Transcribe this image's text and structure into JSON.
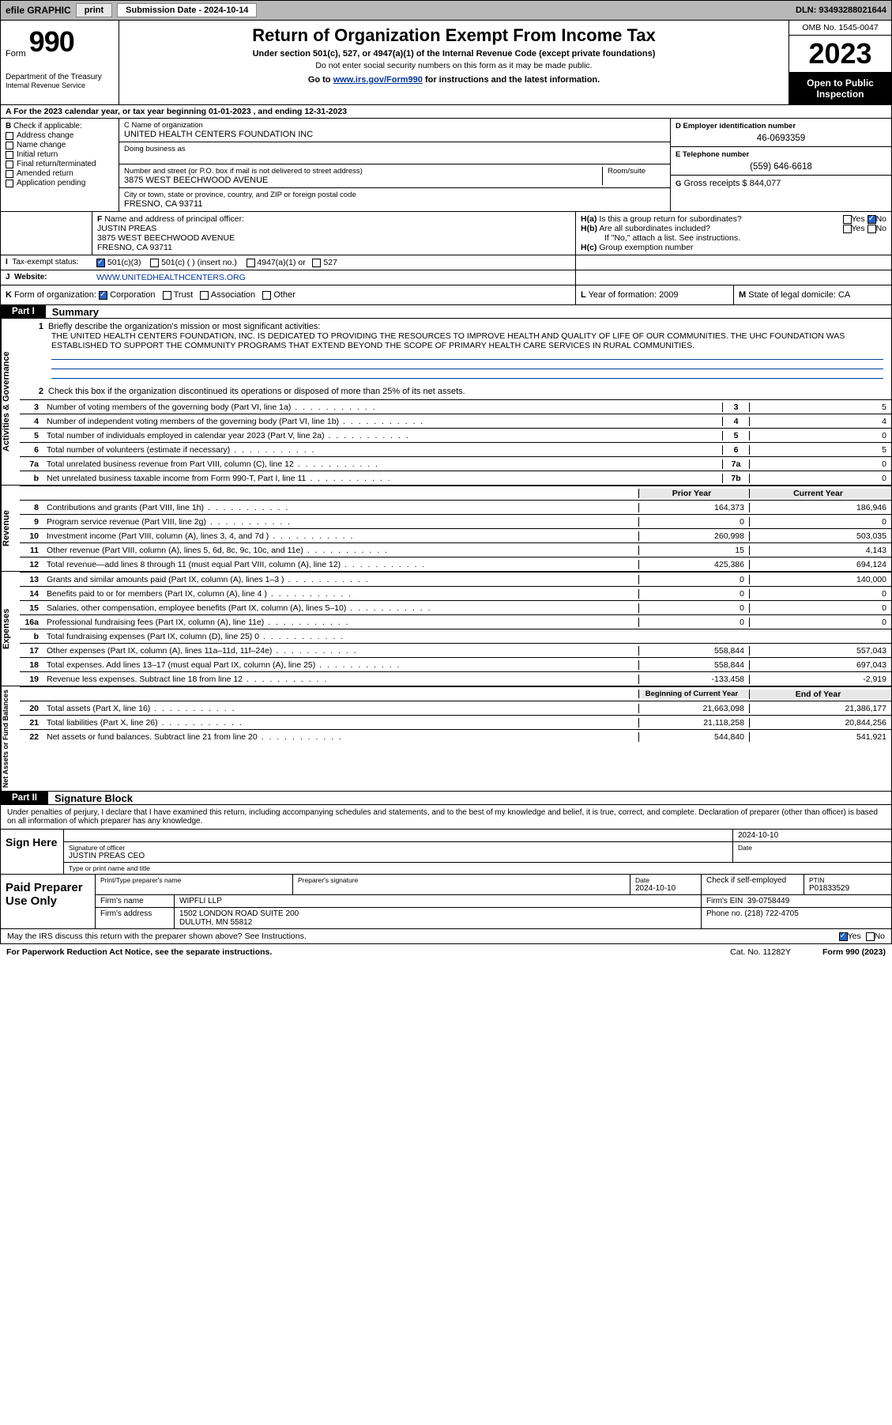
{
  "toolbar": {
    "efile_label": "efile GRAPHIC",
    "print_label": "print",
    "submission_label": "Submission Date - 2024-10-14",
    "dln_label": "DLN: 93493288021644"
  },
  "header": {
    "form_word": "Form",
    "form_number": "990",
    "dept": "Department of the Treasury",
    "irs": "Internal Revenue Service",
    "title": "Return of Organization Exempt From Income Tax",
    "subtitle": "Under section 501(c), 527, or 4947(a)(1) of the Internal Revenue Code (except private foundations)",
    "note1": "Do not enter social security numbers on this form as it may be made public.",
    "note2_prefix": "Go to ",
    "note2_link": "www.irs.gov/Form990",
    "note2_suffix": " for instructions and the latest information.",
    "omb": "OMB No. 1545-0047",
    "year": "2023",
    "open_public": "Open to Public Inspection"
  },
  "tax_year_line": "A For the 2023 calendar year, or tax year beginning 01-01-2023   , and ending 12-31-2023",
  "sectionB": {
    "lead_b": "B",
    "lead_text": " Check if applicable:",
    "addr_change": "Address change",
    "name_change": "Name change",
    "initial_return": "Initial return",
    "final_return": "Final return/terminated",
    "amended_return": "Amended return",
    "app_pending": "Application pending"
  },
  "sectionC": {
    "label_name": "C Name of organization",
    "org_name": "UNITED HEALTH CENTERS FOUNDATION INC",
    "dba_label": "Doing business as",
    "dba_value": "",
    "addr_label": "Number and street (or P.O. box if mail is not delivered to street address)",
    "room_label": "Room/suite",
    "street": "3875 WEST BEECHWOOD AVENUE",
    "city_label": "City or town, state or province, country, and ZIP or foreign postal code",
    "city": "FRESNO, CA  93711"
  },
  "sectionD": {
    "label": "D Employer identification number",
    "value": "46-0693359"
  },
  "sectionE": {
    "label": "E Telephone number",
    "value": "(559) 646-6618"
  },
  "sectionG": {
    "label": "G",
    "text": " Gross receipts $ 844,077"
  },
  "sectionF": {
    "label": "F",
    "text": " Name and address of principal officer:",
    "name": "JUSTIN PREAS",
    "addr1": "3875 WEST BEECHWOOD AVENUE",
    "addr2": "FRESNO, CA  93711"
  },
  "sectionH": {
    "a_label": "H(a)",
    "a_text": "  Is this a group return for subordinates?",
    "b_label": "H(b)",
    "b_text": "  Are all subordinates included?",
    "ifno": "If \"No,\" attach a list. See instructions.",
    "c_label": "H(c)",
    "c_text": "  Group exemption number",
    "yes": "Yes",
    "no": "No"
  },
  "sectionI": {
    "label": "I",
    "text": "Tax-exempt status:",
    "opt1": "501(c)(3)",
    "opt2": "501(c) (  ) (insert no.)",
    "opt3": "4947(a)(1) or",
    "opt4": "527"
  },
  "sectionJ": {
    "label": "J",
    "text": "Website:",
    "value": "WWW.UNITEDHEALTHCENTERS.ORG"
  },
  "sectionK": {
    "label": "K",
    "text": " Form of organization:",
    "corp": "Corporation",
    "trust": "Trust",
    "assoc": "Association",
    "other": "Other"
  },
  "sectionL": {
    "label": "L",
    "text": " Year of formation: 2009"
  },
  "sectionM": {
    "label": "M",
    "text": " State of legal domicile: CA"
  },
  "part1": {
    "part_label": "Part I",
    "summary": "Summary",
    "side_gov": "Activities & Governance",
    "side_rev": "Revenue",
    "side_exp": "Expenses",
    "side_net": "Net Assets or Fund Balances",
    "q1_label": "1",
    "q1_text": "Briefly describe the organization's mission or most significant activities:",
    "mission": "THE UNITED HEALTH CENTERS FOUNDATION, INC. IS DEDICATED TO PROVIDING THE RESOURCES TO IMPROVE HEALTH AND QUALITY OF LIFE OF OUR COMMUNITIES. THE UHC FOUNDATION WAS ESTABLISHED TO SUPPORT THE COMMUNITY PROGRAMS THAT EXTEND BEYOND THE SCOPE OF PRIMARY HEALTH CARE SERVICES IN RURAL COMMUNITIES.",
    "q2_label": "2",
    "q2_text": "Check this box      if the organization discontinued its operations or disposed of more than 25% of its net assets.",
    "rows_gov": [
      {
        "n": "3",
        "desc": "Number of voting members of the governing body (Part VI, line 1a)",
        "code": "3",
        "val": "5"
      },
      {
        "n": "4",
        "desc": "Number of independent voting members of the governing body (Part VI, line 1b)",
        "code": "4",
        "val": "4"
      },
      {
        "n": "5",
        "desc": "Total number of individuals employed in calendar year 2023 (Part V, line 2a)",
        "code": "5",
        "val": "0"
      },
      {
        "n": "6",
        "desc": "Total number of volunteers (estimate if necessary)",
        "code": "6",
        "val": "5"
      },
      {
        "n": "7a",
        "desc": "Total unrelated business revenue from Part VIII, column (C), line 12",
        "code": "7a",
        "val": "0"
      },
      {
        "n": "b",
        "desc": "Net unrelated business taxable income from Form 990-T, Part I, line 11",
        "code": "7b",
        "val": "0"
      }
    ],
    "header_prior": "Prior Year",
    "header_current": "Current Year",
    "rows_rev": [
      {
        "n": "8",
        "desc": "Contributions and grants (Part VIII, line 1h)",
        "prior": "164,373",
        "cur": "186,946"
      },
      {
        "n": "9",
        "desc": "Program service revenue (Part VIII, line 2g)",
        "prior": "0",
        "cur": "0"
      },
      {
        "n": "10",
        "desc": "Investment income (Part VIII, column (A), lines 3, 4, and 7d )",
        "prior": "260,998",
        "cur": "503,035"
      },
      {
        "n": "11",
        "desc": "Other revenue (Part VIII, column (A), lines 5, 6d, 8c, 9c, 10c, and 11e)",
        "prior": "15",
        "cur": "4,143"
      },
      {
        "n": "12",
        "desc": "Total revenue—add lines 8 through 11 (must equal Part VIII, column (A), line 12)",
        "prior": "425,386",
        "cur": "694,124"
      }
    ],
    "rows_exp": [
      {
        "n": "13",
        "desc": "Grants and similar amounts paid (Part IX, column (A), lines 1–3 )",
        "prior": "0",
        "cur": "140,000"
      },
      {
        "n": "14",
        "desc": "Benefits paid to or for members (Part IX, column (A), line 4 )",
        "prior": "0",
        "cur": "0"
      },
      {
        "n": "15",
        "desc": "Salaries, other compensation, employee benefits (Part IX, column (A), lines 5–10)",
        "prior": "0",
        "cur": "0"
      },
      {
        "n": "16a",
        "desc": "Professional fundraising fees (Part IX, column (A), line 11e)",
        "prior": "0",
        "cur": "0"
      },
      {
        "n": "b",
        "desc": "Total fundraising expenses (Part IX, column (D), line 25) 0",
        "prior": "grey",
        "cur": "grey"
      },
      {
        "n": "17",
        "desc": "Other expenses (Part IX, column (A), lines 11a–11d, 11f–24e)",
        "prior": "558,844",
        "cur": "557,043"
      },
      {
        "n": "18",
        "desc": "Total expenses. Add lines 13–17 (must equal Part IX, column (A), line 25)",
        "prior": "558,844",
        "cur": "697,043"
      },
      {
        "n": "19",
        "desc": "Revenue less expenses. Subtract line 18 from line 12",
        "prior": "-133,458",
        "cur": "-2,919"
      }
    ],
    "header_begin": "Beginning of Current Year",
    "header_end": "End of Year",
    "rows_net": [
      {
        "n": "20",
        "desc": "Total assets (Part X, line 16)",
        "prior": "21,663,098",
        "cur": "21,386,177"
      },
      {
        "n": "21",
        "desc": "Total liabilities (Part X, line 26)",
        "prior": "21,118,258",
        "cur": "20,844,256"
      },
      {
        "n": "22",
        "desc": "Net assets or fund balances. Subtract line 21 from line 20",
        "prior": "544,840",
        "cur": "541,921"
      }
    ]
  },
  "part2": {
    "part_label": "Part II",
    "title": "Signature Block",
    "perjury": "Under penalties of perjury, I declare that I have examined this return, including accompanying schedules and statements, and to the best of my knowledge and belief, it is true, correct, and complete. Declaration of preparer (other than officer) is based on all information of which preparer has any knowledge.",
    "sign_here": "Sign Here",
    "sig_of_officer": "Signature of officer",
    "officer_name": "JUSTIN PREAS CEO",
    "type_name": "Type or print name and title",
    "date_label": "Date",
    "date_value": "2024-10-10",
    "paid_preparer": "Paid Preparer Use Only",
    "print_name_label": "Print/Type preparer's name",
    "prep_sig_label": "Preparer's signature",
    "prep_date_label": "Date",
    "prep_date": "2024-10-10",
    "check_self": "Check       if self-employed",
    "ptin_label": "PTIN",
    "ptin": "P01833529",
    "firm_name_label": "Firm's name",
    "firm_name": "WIPFLI LLP",
    "firm_ein_label": "Firm's EIN",
    "firm_ein": "39-0758449",
    "firm_addr_label": "Firm's address",
    "firm_addr1": "1502 LONDON ROAD SUITE 200",
    "firm_addr2": "DULUTH, MN  55812",
    "phone_label": "Phone no.",
    "phone": "(218) 722-4705",
    "discuss": "May the IRS discuss this return with the preparer shown above? See Instructions.",
    "yes": "Yes",
    "no": "No"
  },
  "footer": {
    "paperwork": "For Paperwork Reduction Act Notice, see the separate instructions.",
    "catno": "Cat. No. 11282Y",
    "formref": "Form 990 (2023)"
  }
}
